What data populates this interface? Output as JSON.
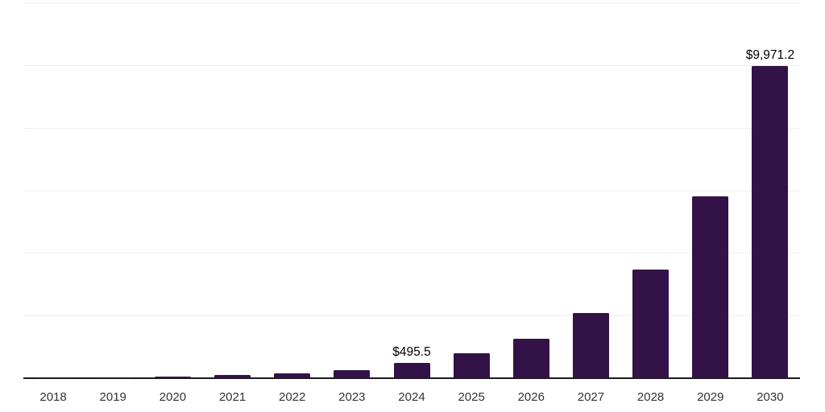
{
  "chart_data": {
    "type": "bar",
    "title": "",
    "xlabel": "",
    "ylabel": "",
    "categories": [
      "2018",
      "2019",
      "2020",
      "2021",
      "2022",
      "2023",
      "2024",
      "2025",
      "2026",
      "2027",
      "2028",
      "2029",
      "2030"
    ],
    "values": [
      10,
      25,
      55,
      100,
      160,
      260,
      495.5,
      790,
      1260,
      2070,
      3460,
      5820,
      9971.2
    ],
    "bar_value_labels": [
      "",
      "",
      "",
      "",
      "",
      "",
      "$495.5",
      "",
      "",
      "",
      "",
      "",
      "$9,971.2"
    ],
    "ylim": [
      0,
      12000
    ],
    "gridline_interval": 2000,
    "grid": "horizontal",
    "y_tick_labels_shown": false,
    "legend": false
  },
  "colors": {
    "background": "#ffffff",
    "bar": "#331347",
    "axis_line": "#1a1a1a",
    "gridline": "#efefef",
    "tick_label": "#333333",
    "value_label": "#000000"
  }
}
